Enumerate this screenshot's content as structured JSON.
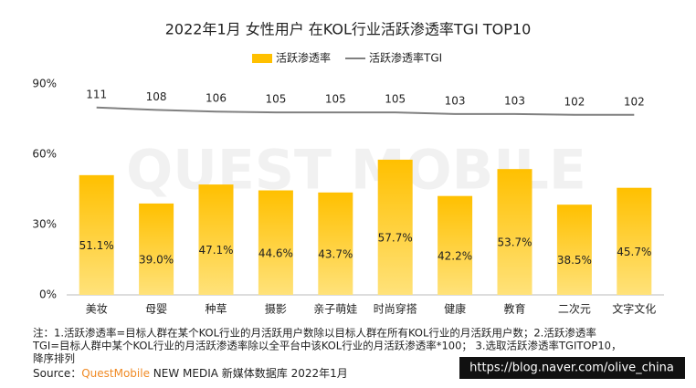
{
  "chart_data": {
    "type": "bar",
    "title": "2022年1月 女性用户 在KOL行业活跃渗透率TGI TOP10",
    "watermark": "QUEST MOBILE",
    "categories": [
      "美妆",
      "母婴",
      "种草",
      "摄影",
      "亲子萌娃",
      "时尚穿搭",
      "健康",
      "教育",
      "二次元",
      "文字文化"
    ],
    "series": [
      {
        "name": "活跃渗透率",
        "type": "bar",
        "color": "#FFC000",
        "values": [
          51.1,
          39.0,
          47.1,
          44.6,
          43.7,
          57.7,
          42.2,
          53.7,
          38.5,
          45.7
        ],
        "value_labels": [
          "51.1%",
          "39.0%",
          "47.1%",
          "44.6%",
          "43.7%",
          "57.7%",
          "42.2%",
          "53.7%",
          "38.5%",
          "45.7%"
        ]
      },
      {
        "name": "活跃渗透率TGI",
        "type": "line",
        "axis": "y2",
        "color": "#808080",
        "values": [
          111,
          108,
          106,
          105,
          105,
          105,
          103,
          103,
          102,
          102
        ]
      }
    ],
    "ylim": [
      0,
      90
    ],
    "yticks": [
      {
        "value": 0,
        "label": "0%"
      },
      {
        "value": 30,
        "label": "30%"
      },
      {
        "value": 60,
        "label": "60%"
      },
      {
        "value": 90,
        "label": "90%"
      }
    ],
    "y2lim": [
      -120,
      140
    ],
    "legend": "top",
    "notes": [
      "注：1.活跃渗透率=目标人群在某个KOL行业的月活跃用户数除以目标人群在所有KOL行业的月活跃用户数；2.活跃渗透率",
      "TGI=目标人群中某个KOL行业的月活跃渗透率除以全平台中该KOL行业的月活跃渗透率*100； 3.选取活跃渗透率TGITOP10，",
      "降序排列"
    ],
    "source": {
      "prefix": "Source：",
      "brand": "QuestMobile",
      "rest": " NEW MEDIA 新媒体数据库 2022年1月"
    },
    "stamp": "https://blog.naver.com/olive_china"
  }
}
